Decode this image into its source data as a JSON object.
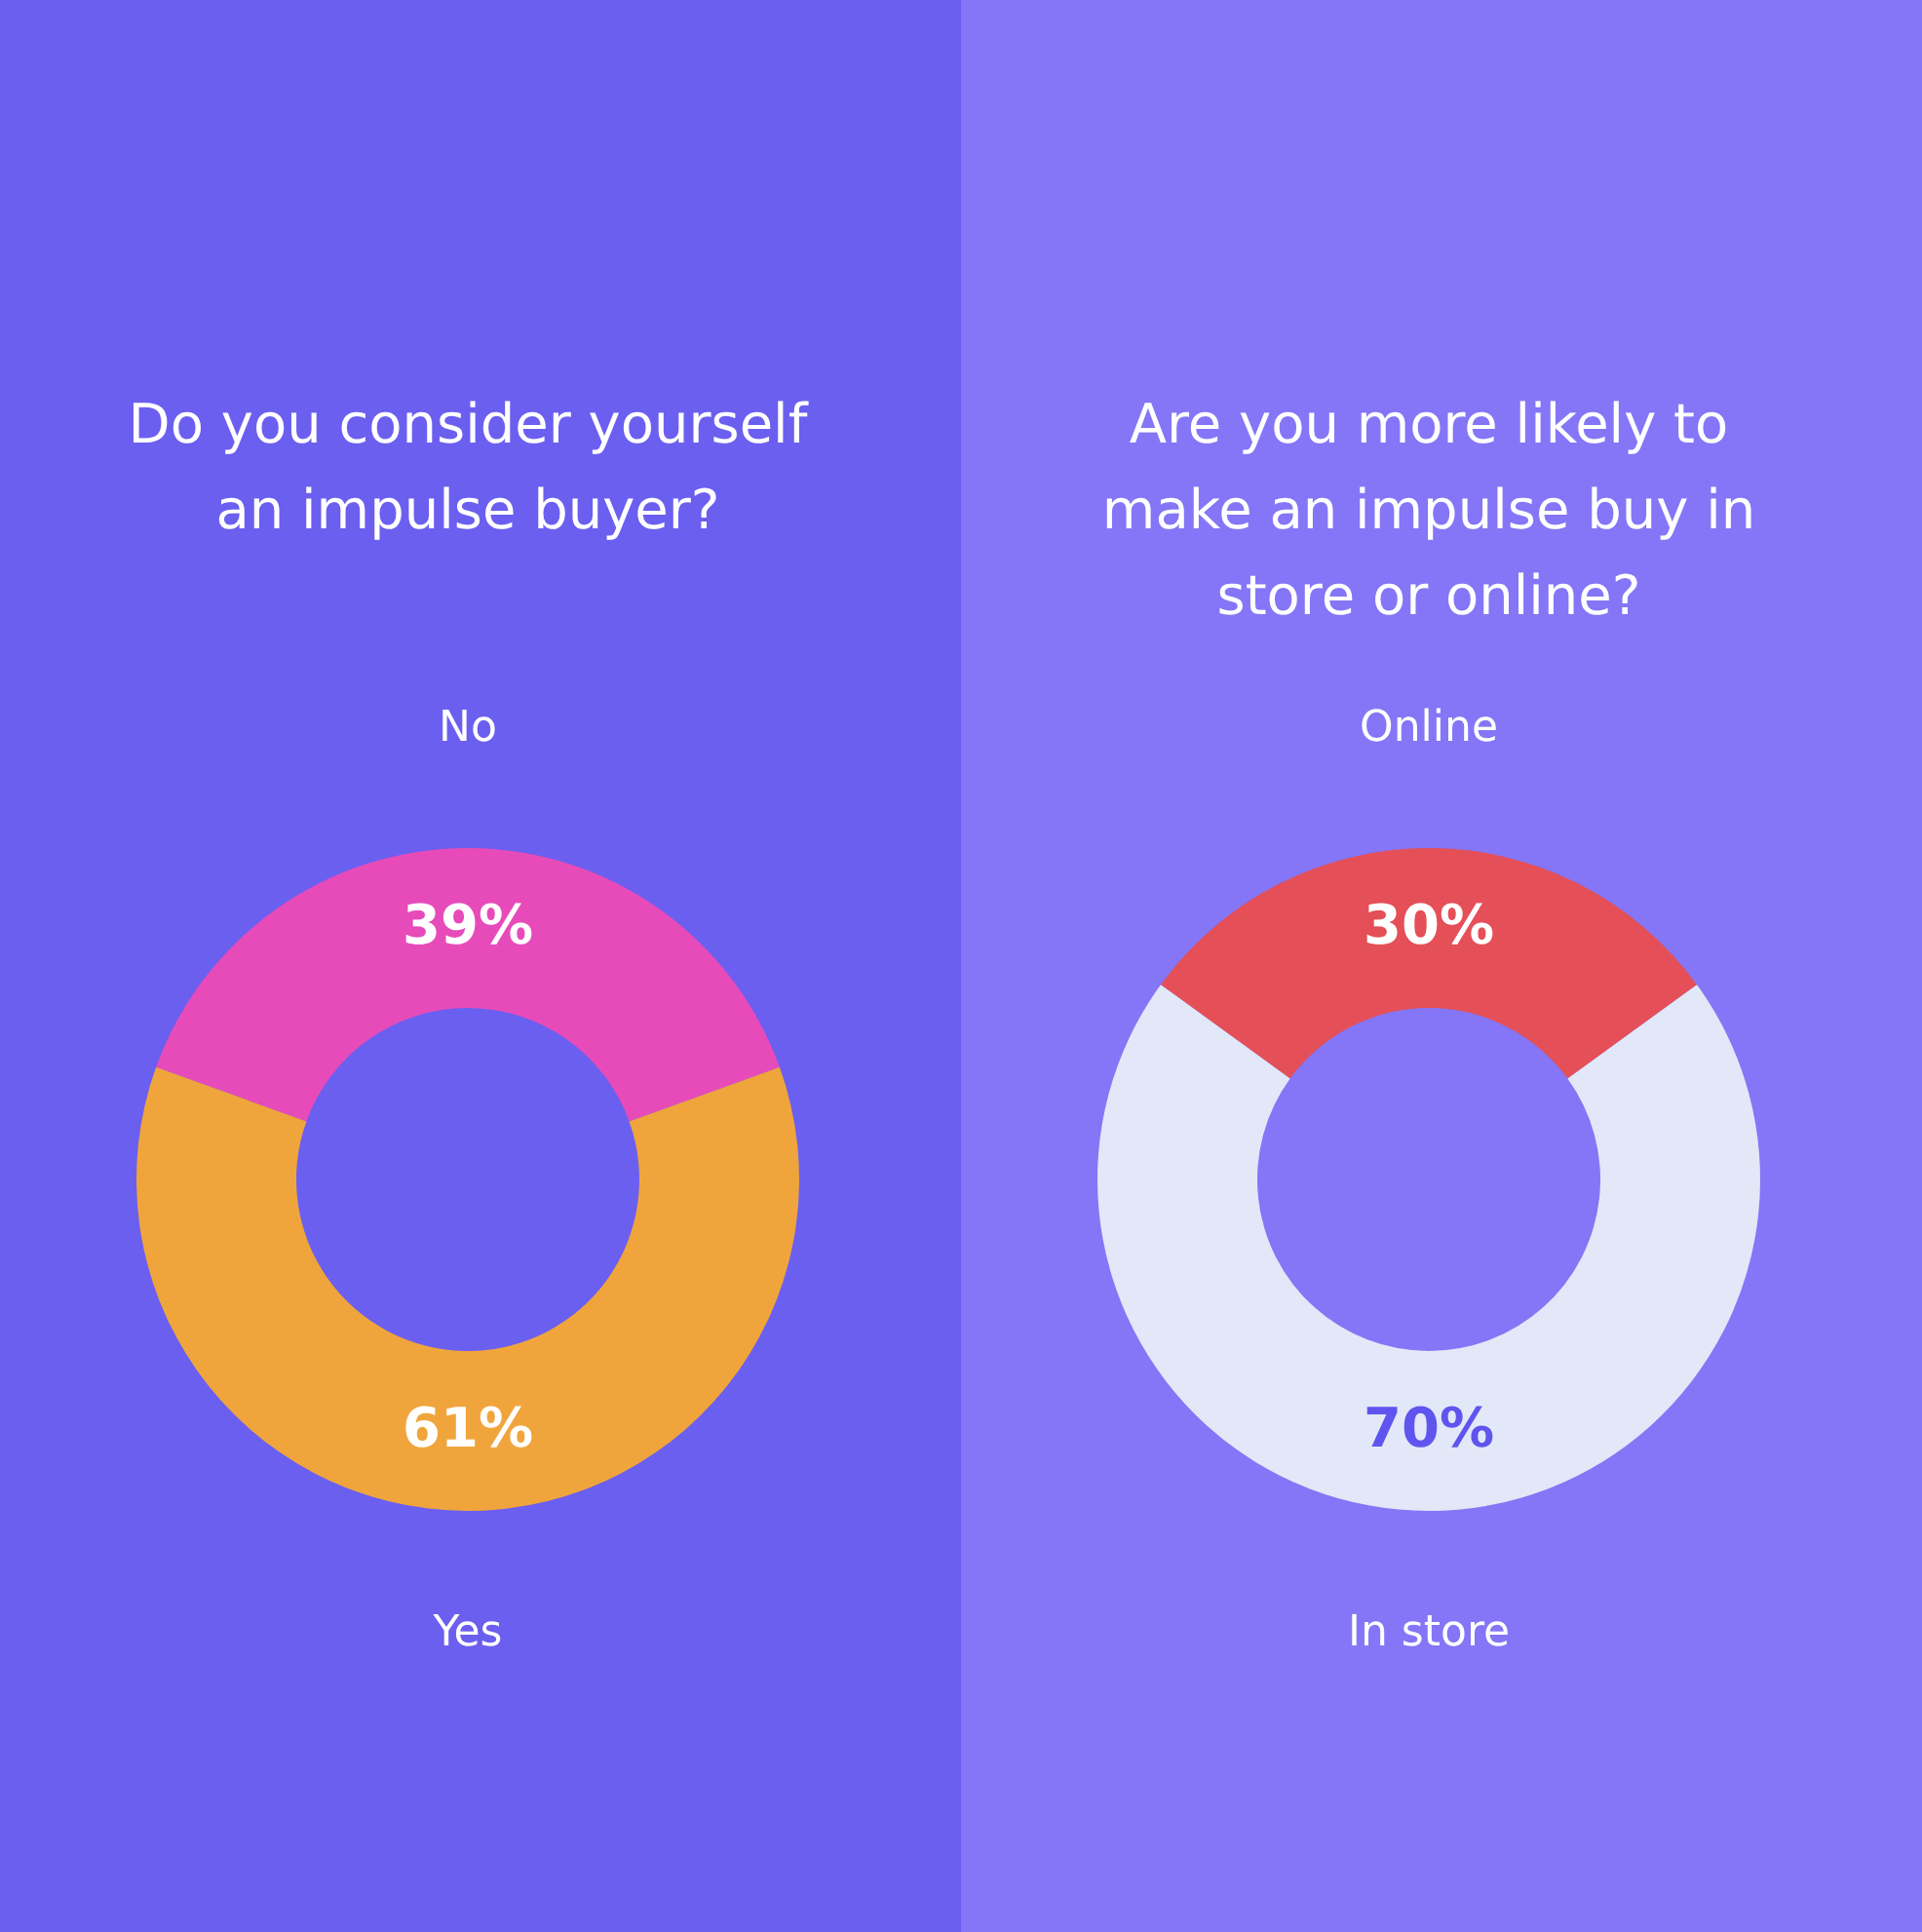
{
  "chart_data": [
    {
      "type": "donut",
      "title": "Do you consider yourself an impulse buyer?",
      "categories": [
        "No",
        "Yes"
      ],
      "values": [
        39,
        61
      ],
      "colors": [
        "#e74bb9",
        "#f0a53c"
      ],
      "value_labels": [
        "39%",
        "61%"
      ],
      "legend": false
    },
    {
      "type": "donut",
      "title": "Are you more likely to make an impulse buy in store or online?",
      "categories": [
        "Online",
        "In store"
      ],
      "values": [
        30,
        70
      ],
      "colors": [
        "#e54f58",
        "#e2e8f8"
      ],
      "value_labels": [
        "30%",
        "70%"
      ],
      "legend": false
    }
  ]
}
